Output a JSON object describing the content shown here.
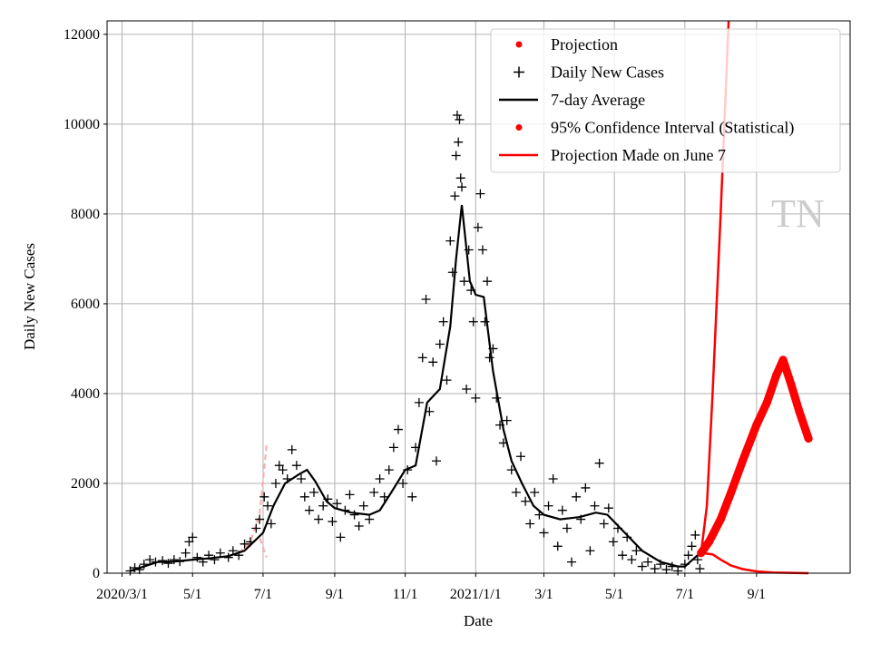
{
  "chart_data": {
    "type": "scatter",
    "title": "",
    "xlabel": "Date",
    "ylabel": "Daily New Cases",
    "ylim": [
      0,
      12300
    ],
    "xlim": [
      "2020-02-17",
      "2021-11-21"
    ],
    "grid": true,
    "legend_position": "top-right",
    "watermark": "TN",
    "yticks": [
      0,
      2000,
      4000,
      6000,
      8000,
      10000,
      12000
    ],
    "xticks": [
      {
        "date": "2020-03-01",
        "label": "2020/3/1"
      },
      {
        "date": "2020-05-01",
        "label": "5/1"
      },
      {
        "date": "2020-07-01",
        "label": "7/1"
      },
      {
        "date": "2020-09-01",
        "label": "9/1"
      },
      {
        "date": "2020-11-01",
        "label": "11/1"
      },
      {
        "date": "2021-01-01",
        "label": "2021/1/1"
      },
      {
        "date": "2021-03-01",
        "label": "3/1"
      },
      {
        "date": "2021-05-01",
        "label": "5/1"
      },
      {
        "date": "2021-07-01",
        "label": "7/1"
      },
      {
        "date": "2021-09-01",
        "label": "9/1"
      }
    ],
    "legend": [
      {
        "label": "Projection",
        "marker": "dot",
        "color": "#ff0000"
      },
      {
        "label": "Daily New Cases",
        "marker": "plus",
        "color": "#000000"
      },
      {
        "label": "7-day Average",
        "marker": "line",
        "color": "#000000"
      },
      {
        "label": "95% Confidence Interval (Statistical)",
        "marker": "dot",
        "color": "#ff0000"
      },
      {
        "label": "Projection Made on June 7",
        "marker": "line",
        "color": "#ff0000"
      }
    ],
    "daily_new_cases": [
      [
        "2020-03-08",
        50
      ],
      [
        "2020-03-12",
        120
      ],
      [
        "2020-03-16",
        80
      ],
      [
        "2020-03-20",
        200
      ],
      [
        "2020-03-25",
        300
      ],
      [
        "2020-03-30",
        250
      ],
      [
        "2020-04-05",
        280
      ],
      [
        "2020-04-10",
        220
      ],
      [
        "2020-04-15",
        300
      ],
      [
        "2020-04-20",
        260
      ],
      [
        "2020-04-25",
        450
      ],
      [
        "2020-04-28",
        700
      ],
      [
        "2020-05-01",
        800
      ],
      [
        "2020-05-05",
        350
      ],
      [
        "2020-05-10",
        250
      ],
      [
        "2020-05-15",
        400
      ],
      [
        "2020-05-20",
        300
      ],
      [
        "2020-05-25",
        450
      ],
      [
        "2020-06-01",
        350
      ],
      [
        "2020-06-05",
        500
      ],
      [
        "2020-06-10",
        400
      ],
      [
        "2020-06-15",
        650
      ],
      [
        "2020-06-20",
        700
      ],
      [
        "2020-06-25",
        1000
      ],
      [
        "2020-06-28",
        1200
      ],
      [
        "2020-07-02",
        1700
      ],
      [
        "2020-07-05",
        1500
      ],
      [
        "2020-07-08",
        1100
      ],
      [
        "2020-07-12",
        2000
      ],
      [
        "2020-07-15",
        2400
      ],
      [
        "2020-07-18",
        2300
      ],
      [
        "2020-07-22",
        2100
      ],
      [
        "2020-07-26",
        2750
      ],
      [
        "2020-07-30",
        2400
      ],
      [
        "2020-08-03",
        2100
      ],
      [
        "2020-08-06",
        1700
      ],
      [
        "2020-08-10",
        1400
      ],
      [
        "2020-08-14",
        1800
      ],
      [
        "2020-08-18",
        1200
      ],
      [
        "2020-08-22",
        1500
      ],
      [
        "2020-08-26",
        1650
      ],
      [
        "2020-08-30",
        1150
      ],
      [
        "2020-09-03",
        1550
      ],
      [
        "2020-09-06",
        800
      ],
      [
        "2020-09-10",
        1400
      ],
      [
        "2020-09-14",
        1750
      ],
      [
        "2020-09-18",
        1300
      ],
      [
        "2020-09-22",
        1050
      ],
      [
        "2020-09-26",
        1500
      ],
      [
        "2020-10-01",
        1200
      ],
      [
        "2020-10-05",
        1800
      ],
      [
        "2020-10-10",
        2100
      ],
      [
        "2020-10-14",
        1700
      ],
      [
        "2020-10-18",
        2300
      ],
      [
        "2020-10-22",
        2800
      ],
      [
        "2020-10-26",
        3200
      ],
      [
        "2020-10-30",
        2000
      ],
      [
        "2020-11-03",
        2300
      ],
      [
        "2020-11-07",
        1700
      ],
      [
        "2020-11-10",
        2800
      ],
      [
        "2020-11-13",
        3800
      ],
      [
        "2020-11-16",
        4800
      ],
      [
        "2020-11-19",
        6100
      ],
      [
        "2020-11-22",
        3600
      ],
      [
        "2020-11-25",
        4700
      ],
      [
        "2020-11-28",
        2500
      ],
      [
        "2020-12-01",
        5100
      ],
      [
        "2020-12-04",
        5600
      ],
      [
        "2020-12-07",
        4300
      ],
      [
        "2020-12-10",
        7400
      ],
      [
        "2020-12-12",
        6700
      ],
      [
        "2020-12-14",
        8400
      ],
      [
        "2020-12-15",
        9300
      ],
      [
        "2020-12-16",
        10200
      ],
      [
        "2020-12-17",
        9600
      ],
      [
        "2020-12-18",
        10100
      ],
      [
        "2020-12-19",
        8800
      ],
      [
        "2020-12-20",
        8600
      ],
      [
        "2020-12-22",
        6500
      ],
      [
        "2020-12-24",
        4100
      ],
      [
        "2020-12-26",
        7200
      ],
      [
        "2020-12-28",
        6300
      ],
      [
        "2020-12-30",
        5600
      ],
      [
        "2021-01-01",
        3900
      ],
      [
        "2021-01-03",
        7700
      ],
      [
        "2021-01-05",
        8450
      ],
      [
        "2021-01-07",
        7200
      ],
      [
        "2021-01-09",
        5600
      ],
      [
        "2021-01-11",
        6500
      ],
      [
        "2021-01-13",
        4800
      ],
      [
        "2021-01-16",
        5000
      ],
      [
        "2021-01-19",
        3900
      ],
      [
        "2021-01-22",
        3300
      ],
      [
        "2021-01-25",
        2900
      ],
      [
        "2021-01-28",
        3400
      ],
      [
        "2021-02-01",
        2300
      ],
      [
        "2021-02-05",
        1800
      ],
      [
        "2021-02-09",
        2600
      ],
      [
        "2021-02-13",
        1600
      ],
      [
        "2021-02-17",
        1100
      ],
      [
        "2021-02-21",
        1800
      ],
      [
        "2021-02-25",
        1300
      ],
      [
        "2021-03-01",
        900
      ],
      [
        "2021-03-05",
        1500
      ],
      [
        "2021-03-09",
        2100
      ],
      [
        "2021-03-13",
        600
      ],
      [
        "2021-03-17",
        1400
      ],
      [
        "2021-03-21",
        1000
      ],
      [
        "2021-03-25",
        250
      ],
      [
        "2021-03-29",
        1700
      ],
      [
        "2021-04-02",
        1200
      ],
      [
        "2021-04-06",
        1900
      ],
      [
        "2021-04-10",
        500
      ],
      [
        "2021-04-14",
        1500
      ],
      [
        "2021-04-18",
        2450
      ],
      [
        "2021-04-22",
        1100
      ],
      [
        "2021-04-26",
        1450
      ],
      [
        "2021-04-30",
        700
      ],
      [
        "2021-05-04",
        1000
      ],
      [
        "2021-05-08",
        400
      ],
      [
        "2021-05-12",
        800
      ],
      [
        "2021-05-16",
        300
      ],
      [
        "2021-05-20",
        500
      ],
      [
        "2021-05-25",
        150
      ],
      [
        "2021-05-30",
        250
      ],
      [
        "2021-06-05",
        100
      ],
      [
        "2021-06-10",
        200
      ],
      [
        "2021-06-15",
        80
      ],
      [
        "2021-06-20",
        150
      ],
      [
        "2021-06-25",
        50
      ],
      [
        "2021-07-01",
        200
      ],
      [
        "2021-07-04",
        400
      ],
      [
        "2021-07-07",
        600
      ],
      [
        "2021-07-10",
        850
      ],
      [
        "2021-07-12",
        300
      ],
      [
        "2021-07-14",
        100
      ]
    ],
    "seven_day_average": [
      [
        "2020-03-08",
        50
      ],
      [
        "2020-03-20",
        150
      ],
      [
        "2020-04-01",
        250
      ],
      [
        "2020-04-15",
        260
      ],
      [
        "2020-05-01",
        300
      ],
      [
        "2020-05-15",
        330
      ],
      [
        "2020-06-01",
        380
      ],
      [
        "2020-06-15",
        500
      ],
      [
        "2020-07-01",
        900
      ],
      [
        "2020-07-10",
        1500
      ],
      [
        "2020-07-20",
        2000
      ],
      [
        "2020-08-01",
        2200
      ],
      [
        "2020-08-08",
        2300
      ],
      [
        "2020-08-15",
        2050
      ],
      [
        "2020-08-25",
        1600
      ],
      [
        "2020-09-01",
        1450
      ],
      [
        "2020-09-15",
        1350
      ],
      [
        "2020-10-01",
        1300
      ],
      [
        "2020-10-10",
        1400
      ],
      [
        "2020-10-20",
        1800
      ],
      [
        "2020-11-01",
        2300
      ],
      [
        "2020-11-10",
        2400
      ],
      [
        "2020-11-20",
        3800
      ],
      [
        "2020-12-01",
        4100
      ],
      [
        "2020-12-10",
        5500
      ],
      [
        "2020-12-15",
        7000
      ],
      [
        "2020-12-20",
        8200
      ],
      [
        "2020-12-27",
        6500
      ],
      [
        "2021-01-01",
        6200
      ],
      [
        "2021-01-08",
        6150
      ],
      [
        "2021-01-16",
        4500
      ],
      [
        "2021-01-25",
        3200
      ],
      [
        "2021-02-01",
        2500
      ],
      [
        "2021-02-10",
        2000
      ],
      [
        "2021-02-20",
        1500
      ],
      [
        "2021-03-01",
        1300
      ],
      [
        "2021-03-15",
        1200
      ],
      [
        "2021-04-01",
        1250
      ],
      [
        "2021-04-15",
        1350
      ],
      [
        "2021-04-25",
        1300
      ],
      [
        "2021-05-10",
        900
      ],
      [
        "2021-05-25",
        500
      ],
      [
        "2021-06-10",
        250
      ],
      [
        "2021-06-25",
        150
      ],
      [
        "2021-07-01",
        150
      ],
      [
        "2021-07-12",
        400
      ]
    ],
    "projection": [
      [
        "2021-07-15",
        450
      ],
      [
        "2021-07-22",
        700
      ],
      [
        "2021-08-01",
        1200
      ],
      [
        "2021-08-10",
        1800
      ],
      [
        "2021-08-20",
        2500
      ],
      [
        "2021-09-01",
        3300
      ],
      [
        "2021-09-10",
        3800
      ],
      [
        "2021-09-18",
        4400
      ],
      [
        "2021-09-24",
        4750
      ],
      [
        "2021-10-01",
        4200
      ],
      [
        "2021-10-08",
        3600
      ],
      [
        "2021-10-16",
        3000
      ]
    ],
    "ci_upper": [
      [
        "2021-07-15",
        450
      ],
      [
        "2021-07-20",
        1500
      ],
      [
        "2021-07-25",
        4000
      ],
      [
        "2021-08-01",
        8000
      ],
      [
        "2021-08-08",
        12400
      ]
    ],
    "ci_lower": [
      [
        "2021-07-15",
        450
      ],
      [
        "2021-07-25",
        420
      ],
      [
        "2021-08-01",
        300
      ],
      [
        "2021-08-10",
        170
      ],
      [
        "2021-08-20",
        90
      ],
      [
        "2021-09-01",
        40
      ],
      [
        "2021-09-15",
        15
      ],
      [
        "2021-10-16",
        0
      ]
    ],
    "earlier_projection_upper": [
      [
        "2020-06-10",
        450
      ],
      [
        "2020-06-20",
        700
      ],
      [
        "2020-06-28",
        1300
      ],
      [
        "2020-07-04",
        2850
      ]
    ],
    "earlier_projection_lower": [
      [
        "2020-06-10",
        450
      ],
      [
        "2020-06-20",
        650
      ],
      [
        "2020-06-28",
        800
      ],
      [
        "2020-07-04",
        350
      ]
    ]
  }
}
